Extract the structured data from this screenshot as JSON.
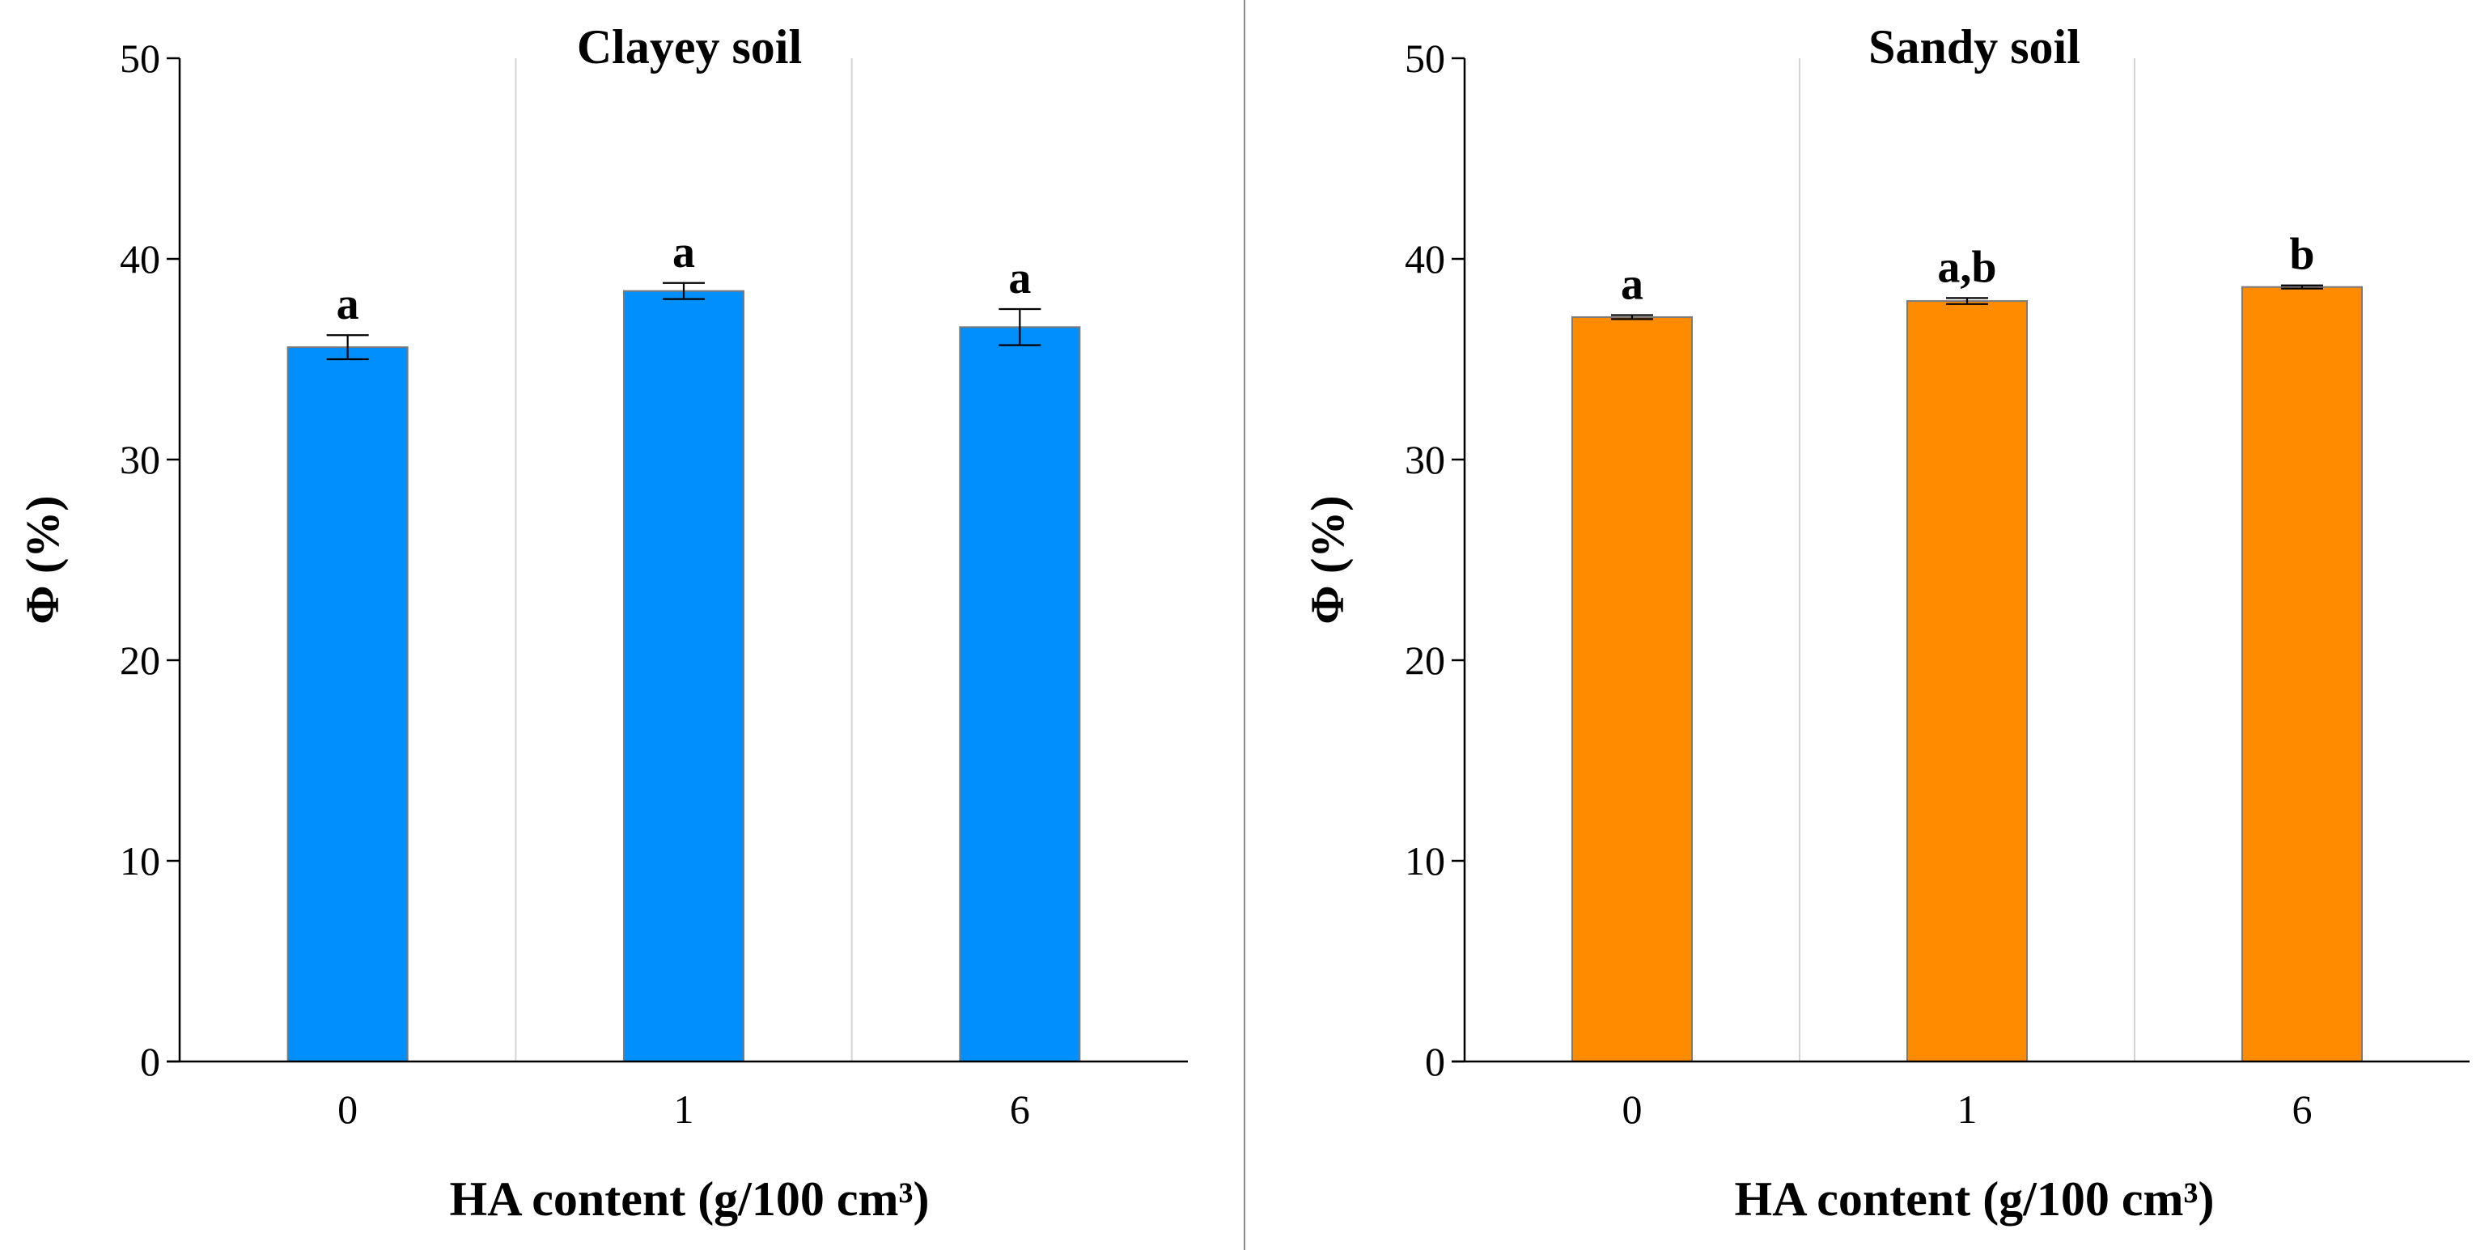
{
  "chart_data": [
    {
      "type": "bar",
      "title": "Clayey soil",
      "xlabel": "HA content (g/100 cm³)",
      "ylabel": "Φ  (%)",
      "categories": [
        "0",
        "1",
        "6"
      ],
      "values": [
        35.6,
        38.4,
        36.6
      ],
      "errors": [
        0.6,
        0.4,
        0.9
      ],
      "significance": [
        "a",
        "a",
        "a"
      ],
      "ylim": [
        0,
        50
      ],
      "yticks": [
        "0",
        "10",
        "20",
        "30",
        "40",
        "50"
      ],
      "color": "#008ffc"
    },
    {
      "type": "bar",
      "title": "Sandy soil",
      "xlabel": "HA content (g/100 cm³)",
      "ylabel": "Φ  (%)",
      "categories": [
        "0",
        "1",
        "6"
      ],
      "values": [
        37.1,
        37.9,
        38.6
      ],
      "errors": [
        0.1,
        0.15,
        0.08
      ],
      "significance": [
        "a",
        "a,b",
        "b"
      ],
      "ylim": [
        0,
        50
      ],
      "yticks": [
        "0",
        "10",
        "20",
        "30",
        "40",
        "50"
      ],
      "color": "#ff8c00"
    }
  ]
}
